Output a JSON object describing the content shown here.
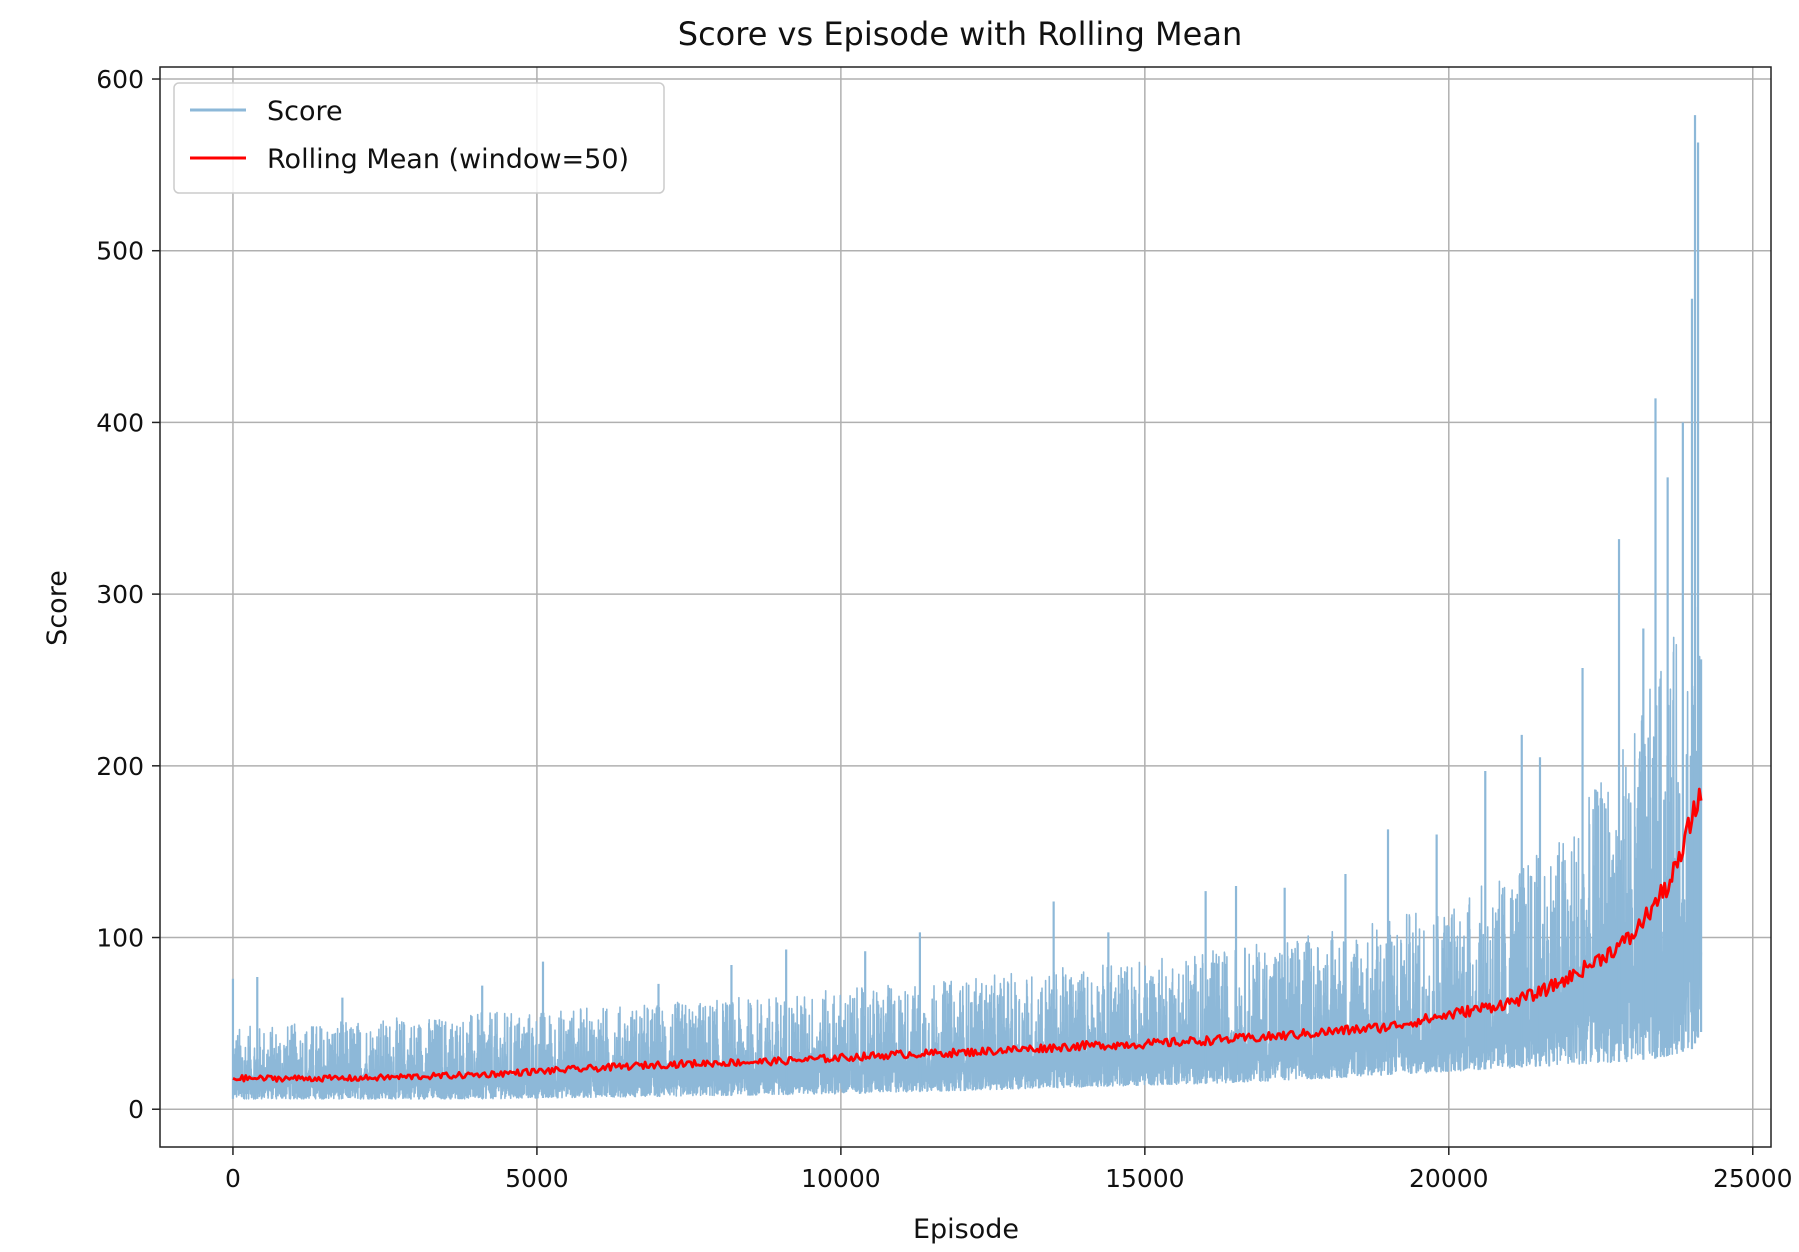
{
  "chart_data": {
    "type": "line",
    "title": "Score vs Episode with Rolling Mean",
    "xlabel": "Episode",
    "ylabel": "Score",
    "xlim": [
      -1200,
      25300
    ],
    "ylim": [
      -22,
      607
    ],
    "xticks": [
      0,
      5000,
      10000,
      15000,
      20000,
      25000
    ],
    "xtick_labels": [
      "0",
      "5000",
      "10000",
      "15000",
      "20000",
      "25000"
    ],
    "yticks": [
      0,
      100,
      200,
      300,
      400,
      500,
      600
    ],
    "ytick_labels": [
      "0",
      "100",
      "200",
      "300",
      "400",
      "500",
      "600"
    ],
    "grid": true,
    "legend_position": "upper-left",
    "episodes": 24150,
    "series": [
      {
        "name": "Score",
        "color": "#8db8d8",
        "style": "noisy per-episode scores; band roughly 5–60 early, widening to ~30–350 near end with spikes",
        "envelope": {
          "x": [
            0,
            2000,
            4000,
            6000,
            8000,
            10000,
            12000,
            14000,
            16000,
            18000,
            19000,
            20000,
            21000,
            22000,
            23000,
            23500,
            24000,
            24150
          ],
          "low": [
            6,
            6,
            6,
            7,
            8,
            9,
            11,
            13,
            15,
            18,
            20,
            22,
            24,
            26,
            28,
            30,
            35,
            45
          ],
          "high": [
            48,
            52,
            56,
            60,
            64,
            70,
            76,
            84,
            92,
            104,
            112,
            122,
            138,
            165,
            220,
            260,
            300,
            300
          ]
        },
        "spikes": [
          {
            "x": 0,
            "y": 76
          },
          {
            "x": 400,
            "y": 77
          },
          {
            "x": 1800,
            "y": 65
          },
          {
            "x": 4100,
            "y": 72
          },
          {
            "x": 5100,
            "y": 86
          },
          {
            "x": 7000,
            "y": 73
          },
          {
            "x": 8200,
            "y": 84
          },
          {
            "x": 9100,
            "y": 93
          },
          {
            "x": 10400,
            "y": 92
          },
          {
            "x": 11300,
            "y": 103
          },
          {
            "x": 13500,
            "y": 121
          },
          {
            "x": 14400,
            "y": 103
          },
          {
            "x": 16000,
            "y": 127
          },
          {
            "x": 16500,
            "y": 130
          },
          {
            "x": 17300,
            "y": 129
          },
          {
            "x": 18300,
            "y": 137
          },
          {
            "x": 19000,
            "y": 163
          },
          {
            "x": 19800,
            "y": 160
          },
          {
            "x": 20600,
            "y": 197
          },
          {
            "x": 21200,
            "y": 218
          },
          {
            "x": 21500,
            "y": 205
          },
          {
            "x": 22200,
            "y": 257
          },
          {
            "x": 22800,
            "y": 332
          },
          {
            "x": 23200,
            "y": 280
          },
          {
            "x": 23400,
            "y": 414
          },
          {
            "x": 23600,
            "y": 368
          },
          {
            "x": 23850,
            "y": 400
          },
          {
            "x": 24000,
            "y": 472
          },
          {
            "x": 24050,
            "y": 579
          },
          {
            "x": 24100,
            "y": 563
          },
          {
            "x": 24150,
            "y": 262
          }
        ]
      },
      {
        "name": "Rolling Mean (window=50)",
        "color": "#ff0000",
        "x": [
          0,
          1000,
          2000,
          3000,
          4000,
          5000,
          6000,
          7000,
          8000,
          9000,
          10000,
          11000,
          12000,
          13000,
          14000,
          15000,
          16000,
          17000,
          18000,
          19000,
          20000,
          21000,
          21500,
          22000,
          22500,
          23000,
          23300,
          23600,
          23800,
          24000,
          24150
        ],
        "y": [
          18,
          18,
          18,
          19,
          20,
          22,
          24,
          26,
          27,
          28,
          30,
          32,
          33,
          35,
          37,
          38,
          40,
          42,
          45,
          48,
          55,
          62,
          68,
          77,
          88,
          100,
          115,
          130,
          145,
          170,
          185
        ]
      }
    ]
  }
}
